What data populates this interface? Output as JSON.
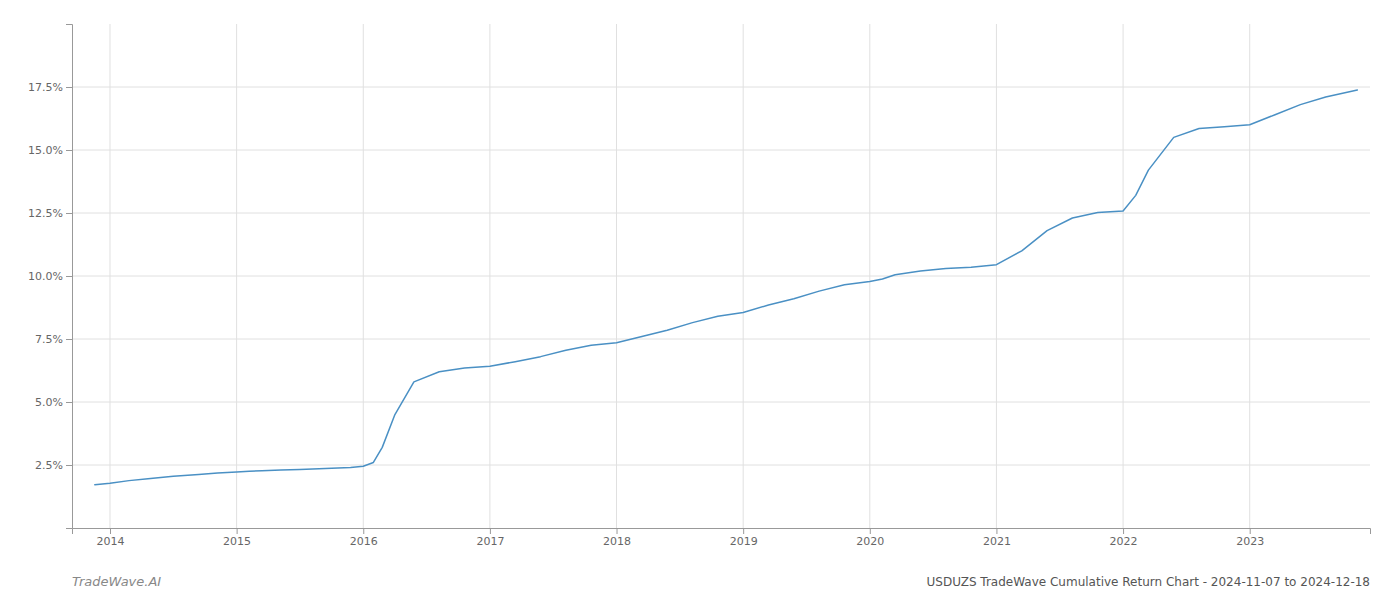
{
  "chart_data": {
    "type": "line",
    "title": "USDUZS TradeWave Cumulative Return Chart - 2024-11-07 to 2024-12-18",
    "annotations": [
      "TradeWave.AI"
    ],
    "color": "#4a90c4",
    "grid": true,
    "x": [
      2013.88,
      2014.0,
      2014.15,
      2014.3,
      2014.5,
      2014.7,
      2014.85,
      2015.0,
      2015.1,
      2015.2,
      2015.35,
      2015.5,
      2015.6,
      2015.7,
      2015.8,
      2015.9,
      2016.0,
      2016.08,
      2016.15,
      2016.25,
      2016.4,
      2016.6,
      2016.8,
      2017.0,
      2017.2,
      2017.4,
      2017.6,
      2017.8,
      2018.0,
      2018.2,
      2018.4,
      2018.6,
      2018.8,
      2019.0,
      2019.2,
      2019.4,
      2019.6,
      2019.8,
      2020.0,
      2020.1,
      2020.2,
      2020.4,
      2020.6,
      2020.8,
      2021.0,
      2021.2,
      2021.4,
      2021.6,
      2021.8,
      2022.0,
      2022.1,
      2022.2,
      2022.4,
      2022.6,
      2022.8,
      2023.0,
      2023.2,
      2023.4,
      2023.6,
      2023.85
    ],
    "values": [
      1.72,
      1.78,
      1.88,
      1.95,
      2.05,
      2.12,
      2.18,
      2.22,
      2.25,
      2.27,
      2.3,
      2.32,
      2.34,
      2.36,
      2.38,
      2.4,
      2.45,
      2.6,
      3.2,
      4.5,
      5.8,
      6.2,
      6.35,
      6.42,
      6.6,
      6.8,
      7.05,
      7.25,
      7.35,
      7.6,
      7.85,
      8.15,
      8.4,
      8.55,
      8.85,
      9.1,
      9.4,
      9.65,
      9.78,
      9.88,
      10.05,
      10.2,
      10.3,
      10.35,
      10.45,
      11.0,
      11.8,
      12.3,
      12.52,
      12.58,
      13.2,
      14.2,
      15.5,
      15.85,
      15.92,
      16.0,
      16.4,
      16.8,
      17.1,
      17.38
    ],
    "xlim": [
      2013.7,
      2023.95
    ],
    "xticks": [
      2014,
      2015,
      2016,
      2017,
      2018,
      2019,
      2020,
      2021,
      2022,
      2023
    ],
    "ylim": [
      0.0,
      20.0
    ],
    "yticks": [
      {
        "value": 2.5,
        "label": "2.5%"
      },
      {
        "value": 5.0,
        "label": "5.0%"
      },
      {
        "value": 7.5,
        "label": "7.5%"
      },
      {
        "value": 10.0,
        "label": "10.0%"
      },
      {
        "value": 12.5,
        "label": "12.5%"
      },
      {
        "value": 15.0,
        "label": "15.0%"
      },
      {
        "value": 17.5,
        "label": "17.5%"
      }
    ]
  }
}
